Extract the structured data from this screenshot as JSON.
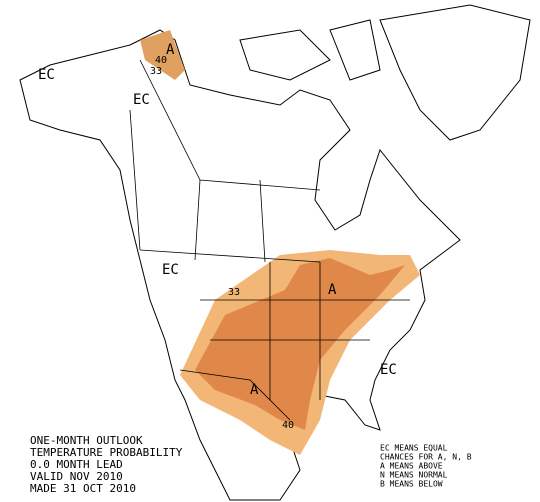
{
  "map_labels": [
    "EC",
    "EC",
    "EC",
    "EC",
    "A",
    "40",
    "33",
    "33",
    "A",
    "A",
    "40"
  ],
  "title_lines": [
    "ONE-MONTH OUTLOOK",
    "TEMPERATURE PROBABILITY",
    "0.0 MONTH LEAD",
    "VALID NOV 2010",
    "MADE 31 OCT 2010"
  ],
  "legend_lines": [
    "EC MEANS EQUAL",
    "CHANCES FOR A, N, B",
    "A MEANS ABOVE",
    "N MEANS NORMAL",
    "B MEANS BELOW"
  ]
}
